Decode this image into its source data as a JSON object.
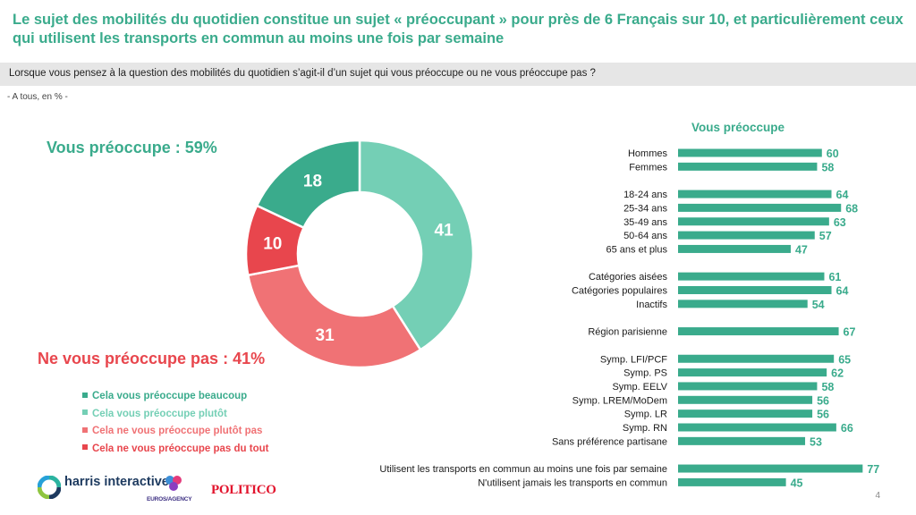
{
  "title": "Le sujet des mobilités du quotidien constitue un sujet « préoccupant » pour près de 6 Français sur 10, et particulièrement ceux qui utilisent les transports en commun au moins une fois par semaine",
  "question": "Lorsque vous pensez à la question des mobilités du quotidien s’agit-il d’un sujet qui vous préoccupe ou ne vous préoccupe pas ?",
  "base_note": "- A tous, en % -",
  "summary": {
    "concerned": "Vous préoccupe : 59%",
    "not_concerned": "Ne vous préoccupe pas : 41%"
  },
  "colors": {
    "green_dark": "#3aab8c",
    "green_light": "#74cfb5",
    "red_light": "#f07275",
    "red_dark": "#e8464d",
    "bar": "#3aab8c"
  },
  "logos": {
    "harris": "harris interactive",
    "euros": "EUROS/AGENCY",
    "politico": "POLITICO"
  },
  "page_number": "4",
  "chart_data": [
    {
      "type": "pie",
      "variant": "donut",
      "categories": [
        "Cela vous préoccupe beaucoup",
        "Cela vous préoccupe plutôt",
        "Cela ne vous préoccupe plutôt pas",
        "Cela ne vous préoccupe pas du tout"
      ],
      "values": [
        18,
        41,
        31,
        10
      ],
      "colors": [
        "#3aab8c",
        "#74cfb5",
        "#f07275",
        "#e8464d"
      ],
      "legend": "bottom-left"
    },
    {
      "type": "bar",
      "orientation": "horizontal",
      "title": "Vous préoccupe",
      "xlim": [
        0,
        100
      ],
      "groups": [
        {
          "categories": [
            "Hommes",
            "Femmes"
          ],
          "values": [
            60,
            58
          ]
        },
        {
          "categories": [
            "18-24 ans",
            "25-34 ans",
            "35-49 ans",
            "50-64 ans",
            "65 ans et plus"
          ],
          "values": [
            64,
            68,
            63,
            57,
            47
          ]
        },
        {
          "categories": [
            "Catégories aisées",
            "Catégories populaires",
            "Inactifs"
          ],
          "values": [
            61,
            64,
            54
          ]
        },
        {
          "categories": [
            "Région parisienne"
          ],
          "values": [
            67
          ]
        },
        {
          "categories": [
            "Symp. LFI/PCF",
            "Symp. PS",
            "Symp. EELV",
            "Symp. LREM/MoDem",
            "Symp. LR",
            "Symp. RN",
            "Sans préférence partisane"
          ],
          "values": [
            65,
            62,
            58,
            56,
            56,
            66,
            53
          ]
        },
        {
          "categories": [
            "Utilisent les transports en commun au moins une fois par semaine",
            "N'utilisent jamais les transports en commun"
          ],
          "values": [
            77,
            45
          ]
        }
      ]
    }
  ]
}
